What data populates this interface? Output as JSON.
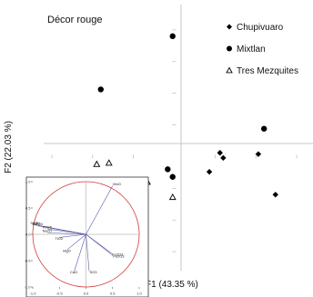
{
  "chart_data": [
    {
      "type": "scatter",
      "title": "Décor rouge",
      "xlabel": "F1 (43.35 %)",
      "ylabel": "F2 (22.03 %)",
      "xlim": [
        -1.6,
        1.7
      ],
      "ylim": [
        -0.9,
        1.2
      ],
      "legend_position": "top-right",
      "series": [
        {
          "name": "Chupivuaro",
          "marker": "diamond",
          "color": "#000000",
          "points": [
            [
              0.43,
              -0.12
            ],
            [
              0.56,
              0.03
            ],
            [
              0.6,
              -0.01
            ],
            [
              1.03,
              0.02
            ],
            [
              1.24,
              -0.3
            ]
          ]
        },
        {
          "name": "Mixtlan",
          "marker": "circle",
          "color": "#000000",
          "points": [
            [
              -0.02,
              0.95
            ],
            [
              -0.9,
              0.53
            ],
            [
              -0.08,
              -0.1
            ],
            [
              -0.02,
              -0.16
            ],
            [
              1.1,
              0.22
            ]
          ]
        },
        {
          "name": "Tres Mezquites",
          "marker": "triangle-open",
          "color": "#000000",
          "points": [
            [
              -0.95,
              -0.06
            ],
            [
              -0.8,
              -0.05
            ],
            [
              -1.42,
              -0.2
            ],
            [
              -0.82,
              -0.26
            ],
            [
              -0.33,
              -0.2
            ],
            [
              -0.02,
              -0.32
            ]
          ]
        }
      ]
    },
    {
      "type": "scatter",
      "subtype": "correlation-circle",
      "xlim": [
        -1.0,
        1.0
      ],
      "ylim": [
        -1.0,
        1.0
      ],
      "x_ticks": [
        "-1.0",
        "-0.5",
        "0.0",
        "0.5",
        "1.0"
      ],
      "y_ticks": [
        "1.0",
        "0.5",
        "0.0",
        "-0.5",
        "-1.0"
      ],
      "circle_color": "#d23a3a",
      "vector_color": "#5a5aa6",
      "variables": [
        {
          "label": "MnO",
          "x": 0.5,
          "y": 0.92
        },
        {
          "label": "SiO2",
          "x": -0.96,
          "y": 0.18
        },
        {
          "label": "K2O",
          "x": -0.92,
          "y": 0.17
        },
        {
          "label": "Al2O3",
          "x": -0.9,
          "y": 0.16
        },
        {
          "label": "P2O5",
          "x": -0.72,
          "y": 0.1
        },
        {
          "label": "Na2O",
          "x": -0.72,
          "y": 0.03
        },
        {
          "label": "TiO2",
          "x": -0.5,
          "y": -0.06
        },
        {
          "label": "MgO",
          "x": -0.35,
          "y": -0.29
        },
        {
          "label": "Fe2O3",
          "x": 0.48,
          "y": -0.36
        },
        {
          "label": "Fe2O3",
          "x": 0.5,
          "y": -0.4
        },
        {
          "label": "CaO",
          "x": -0.22,
          "y": -0.7
        },
        {
          "label": "SO3",
          "x": 0.06,
          "y": -0.7
        }
      ]
    }
  ]
}
